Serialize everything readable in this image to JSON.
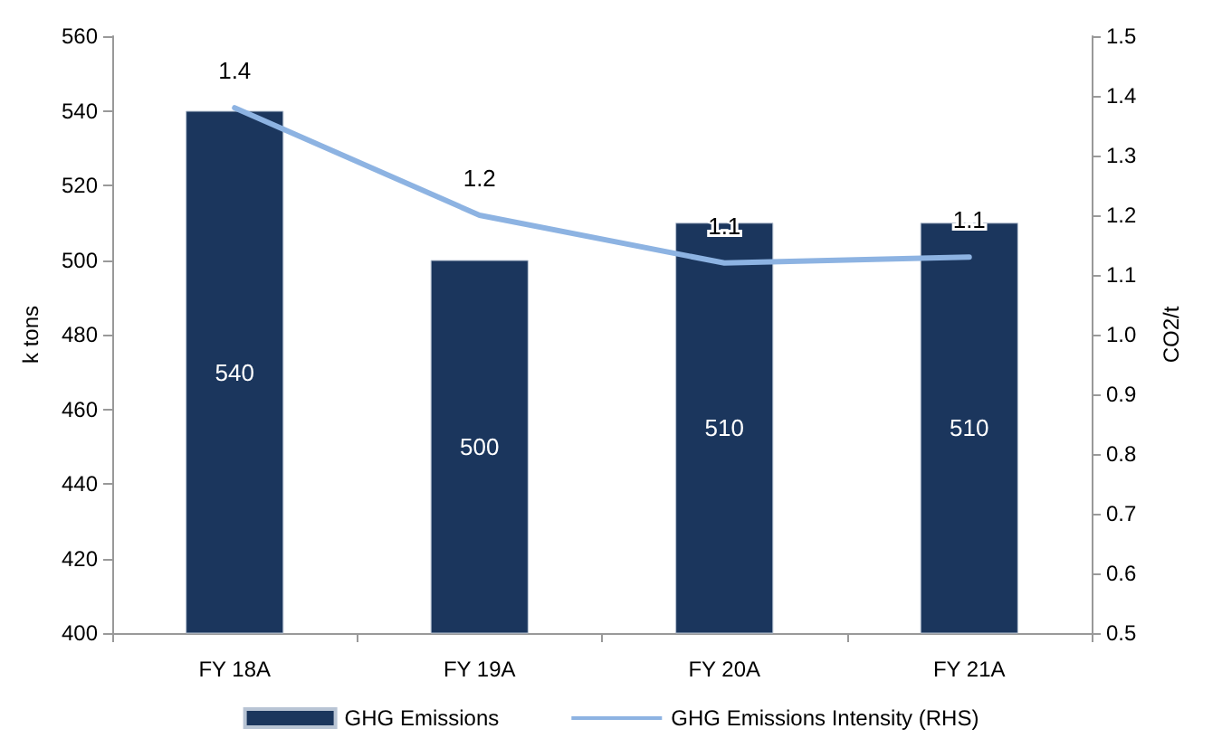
{
  "chart_data": {
    "type": "bar",
    "categories": [
      "FY 18A",
      "FY 19A",
      "FY 20A",
      "FY 21A"
    ],
    "series": [
      {
        "name": "GHG Emissions",
        "color": "#1b365d",
        "values": [
          540,
          500,
          510,
          510
        ],
        "value_labels": [
          "540",
          "500",
          "510",
          "510"
        ]
      },
      {
        "name": "GHG Emissions Intensity (RHS)",
        "type": "line",
        "axis": "y2",
        "color": "#8db3e2",
        "values": [
          1.38,
          1.2,
          1.12,
          1.13
        ],
        "value_labels": [
          "1.4",
          "1.2",
          "1.1",
          "1.1"
        ]
      }
    ],
    "ylabel": "k tons",
    "y2label": "CO2/t",
    "ylim": [
      400,
      560
    ],
    "yticks": [
      400,
      420,
      440,
      460,
      480,
      500,
      520,
      540,
      560
    ],
    "y2lim": [
      0.5,
      1.5
    ],
    "y2ticks": [
      0.5,
      0.6,
      0.7,
      0.8,
      0.9,
      {
        "value": 1,
        "label": "1.0"
      },
      1.1,
      1.2,
      1.3,
      1.4,
      1.5
    ],
    "grid": false,
    "legend": "bottom",
    "marker": "none",
    "line_style": "solid"
  }
}
